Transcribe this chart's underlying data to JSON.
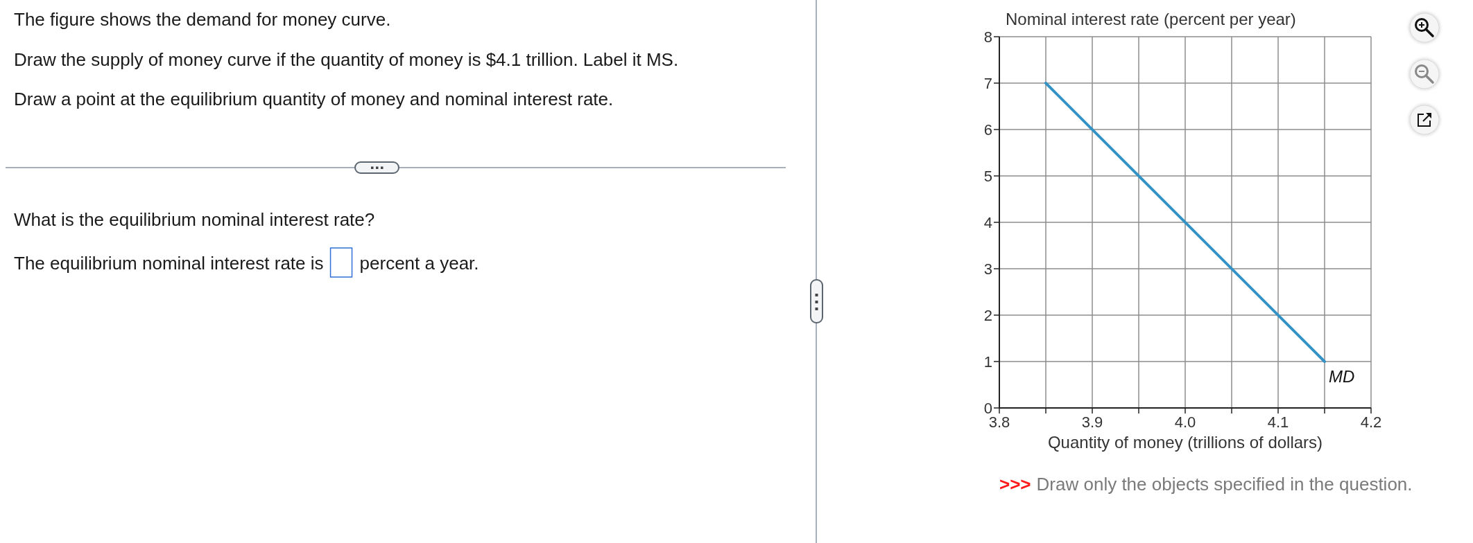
{
  "chart_data": {
    "type": "line",
    "xlabel": "Quantity of money (trillions of dollars)",
    "ylabel": "Nominal interest rate (percent per year)",
    "annotations": [
      "The figure shows the demand for money curve.",
      "Draw the supply of money curve if the quantity of money is $4.1 trillion. Label it MS.",
      "Draw a point at the equilibrium quantity of money and nominal interest rate.",
      "What is the equilibrium nominal interest rate?",
      "The equilibrium nominal interest rate is",
      "percent a year.",
      ">>>",
      "Draw only the objects specified in the question."
    ],
    "series": [
      {
        "name": "MD",
        "color": "#3592c4",
        "x": [
          3.85,
          4.15
        ],
        "values": [
          7,
          1
        ]
      }
    ],
    "xlim": [
      3.8,
      4.2
    ],
    "xticks": [
      3.8,
      {
        "value": 3.85,
        "label": null
      },
      3.9,
      {
        "value": 3.95,
        "label": null
      },
      {
        "value": 4,
        "label": "4.0"
      },
      {
        "value": 4.05,
        "label": null
      },
      4.1,
      {
        "value": 4.15,
        "label": null
      },
      4.2
    ],
    "ylim": [
      0,
      8
    ],
    "yticks": [
      0,
      1,
      2,
      3,
      4,
      5,
      6,
      7,
      8
    ],
    "grid": true
  }
}
